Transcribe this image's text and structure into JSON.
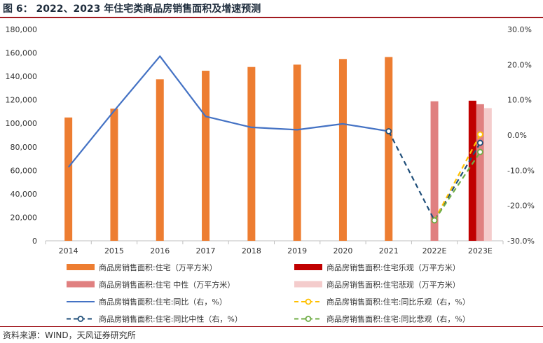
{
  "header": {
    "title": "图 6：  2022、2023 年住宅类商品房销售面积及增速预测"
  },
  "footer": {
    "source": "资料来源：WIND，天风证券研究所"
  },
  "colors": {
    "area_bar": "#ED7D31",
    "optimistic_bar": "#C00000",
    "neutral_bar": "#E08080",
    "pessimistic_bar": "#F4CCCC",
    "yoy_line": "#4472C4",
    "optimistic_line": "#FFC000",
    "neutral_line": "#1F4E79",
    "pessimistic_line": "#70AD47",
    "title_rule": "#A11A20"
  },
  "chart_data": {
    "type": "bar",
    "title": "",
    "categories": [
      "2014",
      "2015",
      "2016",
      "2017",
      "2018",
      "2019",
      "2020",
      "2021",
      "2022E",
      "2023E"
    ],
    "left_axis": {
      "ylim": [
        0,
        180000
      ],
      "ticks": [
        "0",
        "20,000",
        "40,000",
        "60,000",
        "80,000",
        "100,000",
        "120,000",
        "140,000",
        "160,000",
        "180,000"
      ]
    },
    "right_axis": {
      "ylim": [
        -30,
        30
      ],
      "ticks": [
        "-30.0%",
        "-20.0%",
        "-10.0%",
        "0.0%",
        "10.0%",
        "20.0%",
        "30.0%"
      ]
    },
    "series": [
      {
        "name": "商品房销售面积:住宅（万平方米）",
        "kind": "bar",
        "axis": "left",
        "color": "#ED7D31",
        "values": [
          105000,
          112500,
          137500,
          144800,
          148000,
          150000,
          154800,
          156500,
          null,
          null
        ]
      },
      {
        "name": "商品房销售面积:住宅 中性（万平方米）",
        "kind": "bar",
        "axis": "left",
        "color": "#E08080",
        "values": [
          null,
          null,
          null,
          null,
          null,
          null,
          null,
          null,
          118800,
          116300
        ]
      },
      {
        "name": "商品房销售面积:住宅乐观（万平方米）",
        "kind": "bar",
        "axis": "left",
        "color": "#C00000",
        "values": [
          null,
          null,
          null,
          null,
          null,
          null,
          null,
          null,
          null,
          119300
        ]
      },
      {
        "name": "商品房销售面积:住宅悲观（万平方米）",
        "kind": "bar",
        "axis": "left",
        "color": "#F4CCCC",
        "values": [
          null,
          null,
          null,
          null,
          null,
          null,
          null,
          null,
          null,
          113000
        ]
      },
      {
        "name": "商品房销售面积:住宅:同比（右，%）",
        "kind": "line",
        "axis": "right",
        "color": "#4472C4",
        "values": [
          -9.1,
          6.9,
          22.4,
          5.3,
          2.2,
          1.5,
          3.2,
          1.1,
          null,
          null
        ]
      },
      {
        "name": "商品房销售面积:住宅:同比中性（右，%）",
        "kind": "dashed",
        "axis": "right",
        "color": "#1F4E79",
        "values": [
          null,
          null,
          null,
          null,
          null,
          null,
          null,
          1.1,
          -24.2,
          -2.2
        ]
      },
      {
        "name": "商品房销售面积:住宅:同比乐观（右，%）",
        "kind": "dashed",
        "axis": "right",
        "color": "#FFC000",
        "values": [
          null,
          null,
          null,
          null,
          null,
          null,
          null,
          null,
          -24.2,
          0.2
        ]
      },
      {
        "name": "商品房销售面积:住宅:同比悲观（右，%）",
        "kind": "dashed",
        "axis": "right",
        "color": "#70AD47",
        "values": [
          null,
          null,
          null,
          null,
          null,
          null,
          null,
          null,
          -24.2,
          -4.8
        ]
      }
    ],
    "legend": {
      "placement": "bottom",
      "entries": [
        {
          "label": "商品房销售面积:住宅（万平方米）",
          "style": "bar",
          "color": "#ED7D31"
        },
        {
          "label": "商品房销售面积:住宅乐观（万平方米）",
          "style": "bar",
          "color": "#C00000"
        },
        {
          "label": "商品房销售面积:住宅 中性（万平方米）",
          "style": "bar",
          "color": "#E08080"
        },
        {
          "label": "商品房销售面积:住宅悲观（万平方米）",
          "style": "bar",
          "color": "#F4CCCC"
        },
        {
          "label": "商品房销售面积:住宅:同比（右，%）",
          "style": "line",
          "color": "#4472C4"
        },
        {
          "label": "商品房销售面积:住宅:同比乐观（右，%）",
          "style": "dashed",
          "color": "#FFC000"
        },
        {
          "label": "商品房销售面积:住宅:同比中性（右，%）",
          "style": "dashed",
          "color": "#1F4E79"
        },
        {
          "label": "商品房销售面积:住宅:同比悲观（右，%）",
          "style": "dashed",
          "color": "#70AD47"
        }
      ]
    },
    "grid": false
  }
}
